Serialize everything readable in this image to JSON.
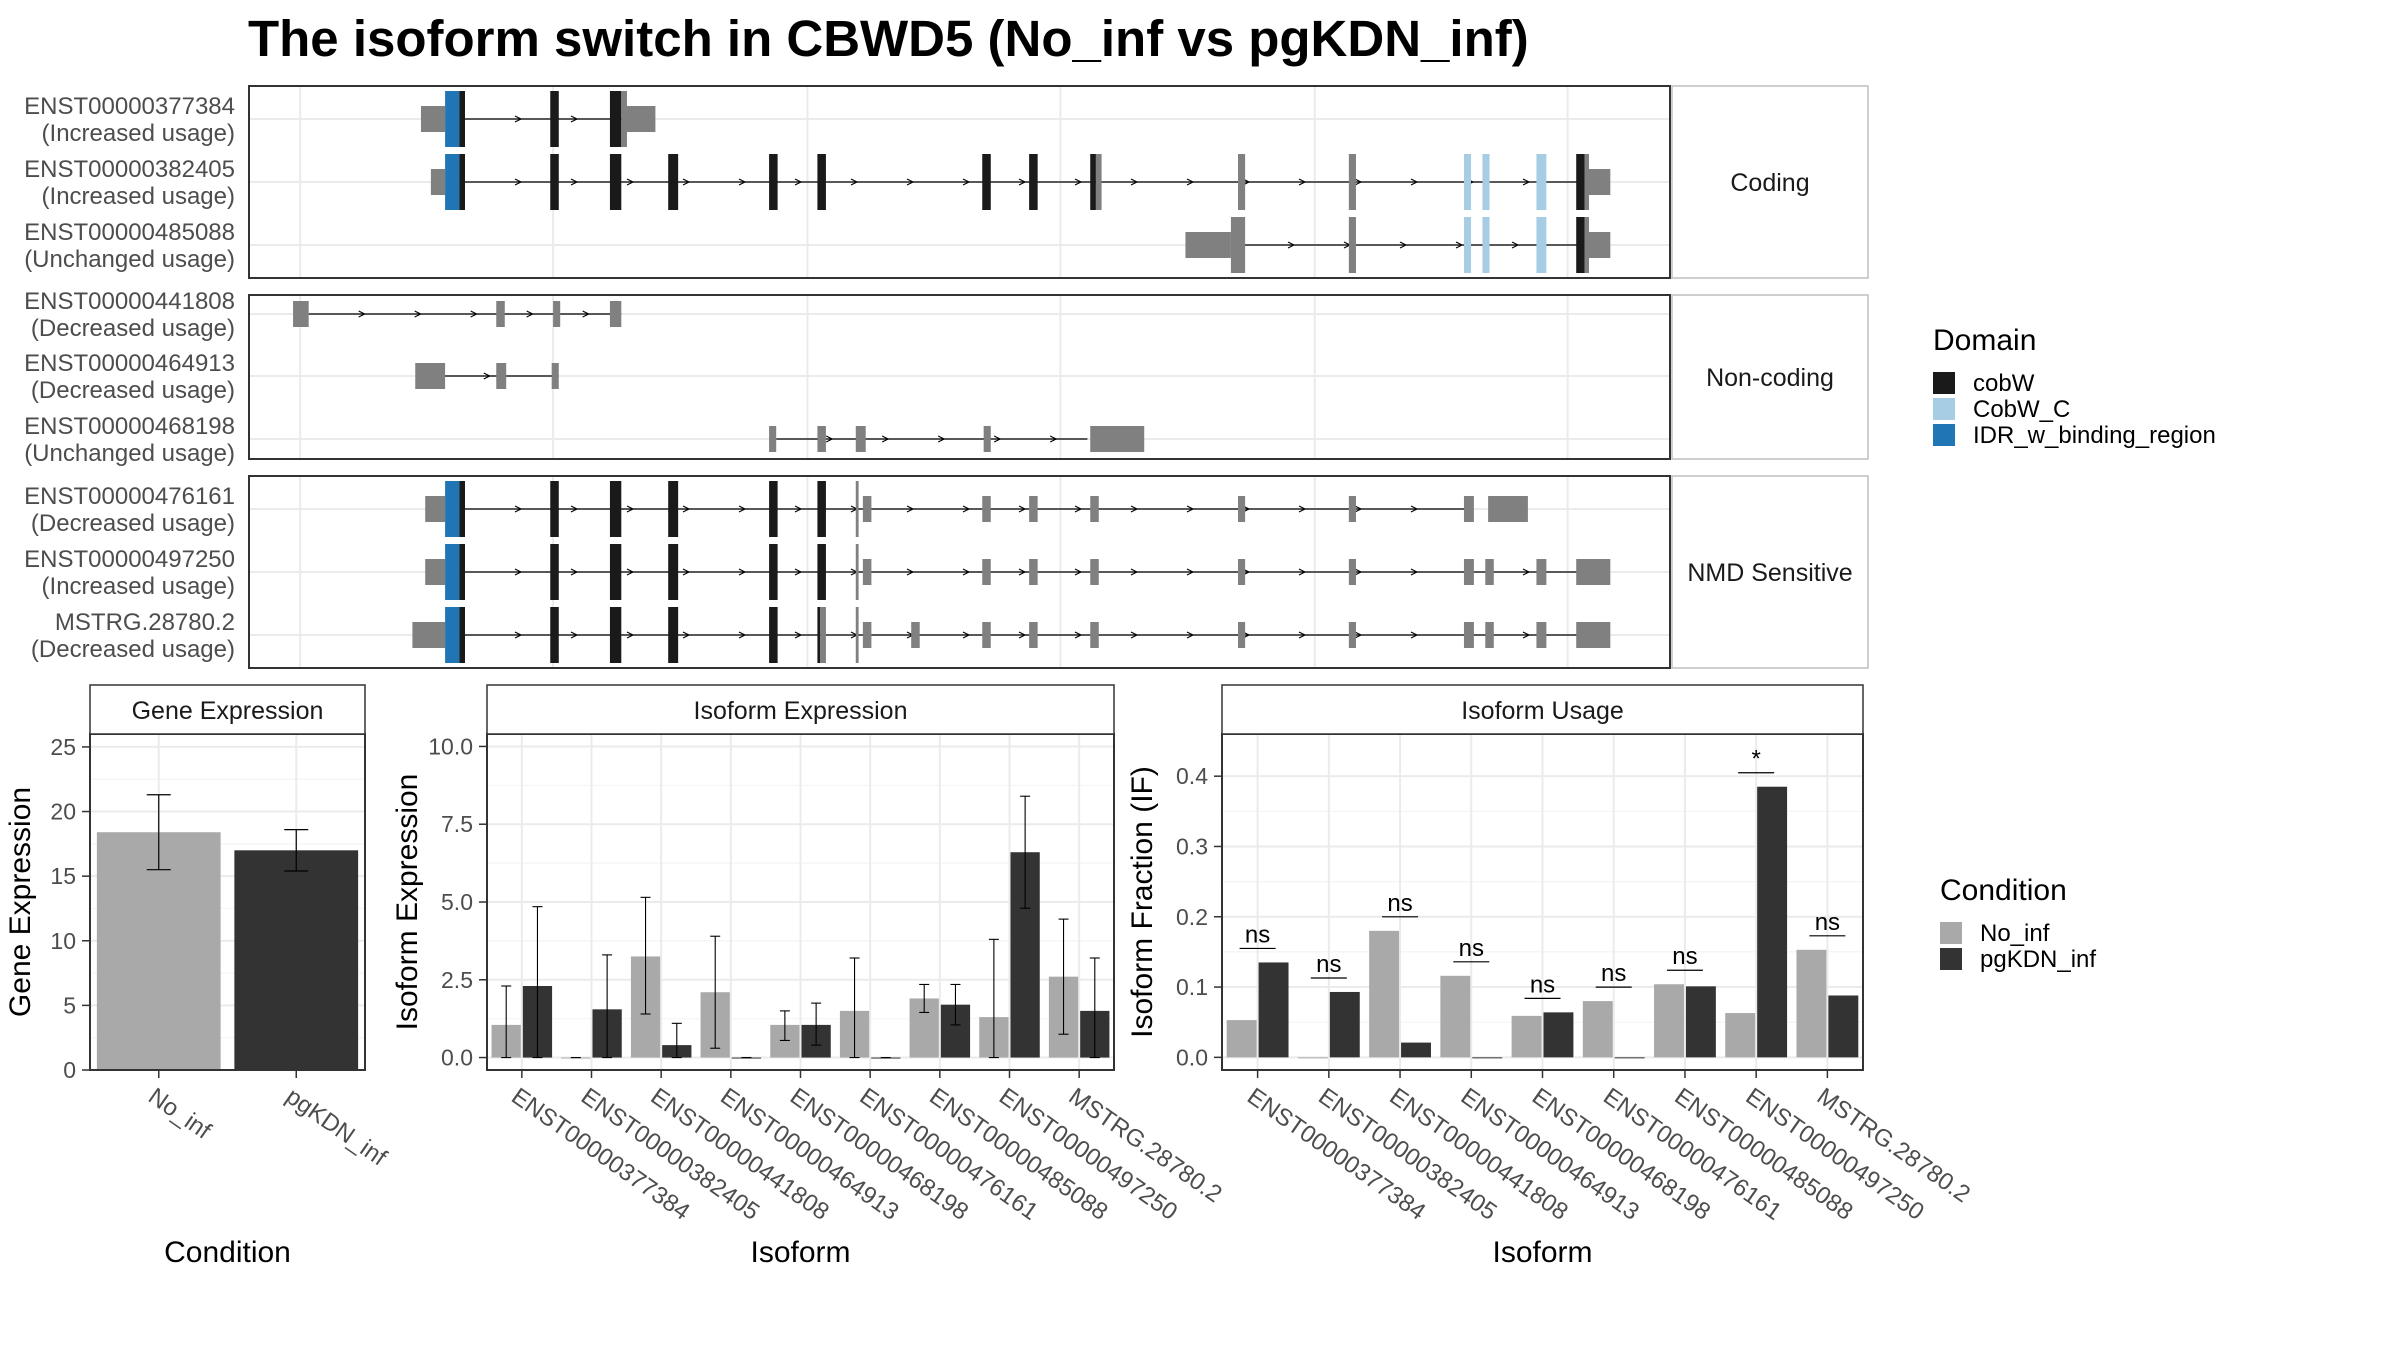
{
  "title": "The isoform switch in CBWD5 (No_inf vs pgKDN_inf)",
  "colors": {
    "cobW": "#1a1a1a",
    "CobW_C": "#a6cde3",
    "IDR_w_binding_region": "#2076b4",
    "no_domain": "#808080",
    "No_inf": "#a9a9a9",
    "pgKDN_inf": "#333333",
    "grid": "#ebebeb",
    "panel_border": "#333333",
    "strip_border": "#bfbfbf"
  },
  "structure_panels": [
    {
      "label": "Coding",
      "isoforms": [
        {
          "id": "ENST00000377384",
          "usage": "(Increased usage)"
        },
        {
          "id": "ENST00000382405",
          "usage": "(Increased usage)"
        },
        {
          "id": "ENST00000485088",
          "usage": "(Unchanged usage)"
        }
      ]
    },
    {
      "label": "Non-coding",
      "isoforms": [
        {
          "id": "ENST00000441808",
          "usage": "(Decreased usage)"
        },
        {
          "id": "ENST00000464913",
          "usage": "(Decreased usage)"
        },
        {
          "id": "ENST00000468198",
          "usage": "(Unchanged usage)"
        }
      ]
    },
    {
      "label": "NMD Sensitive",
      "isoforms": [
        {
          "id": "ENST00000476161",
          "usage": "(Decreased usage)"
        },
        {
          "id": "ENST00000497250",
          "usage": "(Increased usage)"
        },
        {
          "id": "MSTRG.28780.2",
          "usage": "(Decreased usage)"
        }
      ]
    }
  ],
  "domain_legend": {
    "title": "Domain",
    "items": [
      {
        "name": "cobW",
        "color": "#1a1a1a"
      },
      {
        "name": "CobW_C",
        "color": "#a6cde3"
      },
      {
        "name": "IDR_w_binding_region",
        "color": "#2076b4"
      }
    ]
  },
  "condition_legend": {
    "title": "Condition",
    "items": [
      {
        "name": "No_inf",
        "color": "#a9a9a9"
      },
      {
        "name": "pgKDN_inf",
        "color": "#333333"
      }
    ]
  },
  "chart_data": [
    {
      "type": "bar",
      "title": "Gene Expression",
      "xlabel": "Condition",
      "ylabel": "Gene Expression",
      "categories": [
        "No_inf",
        "pgKDN_inf"
      ],
      "values": [
        18.4,
        17.0
      ],
      "error_low": [
        15.5,
        15.4
      ],
      "error_high": [
        21.3,
        18.6
      ],
      "ylim": [
        0,
        26
      ],
      "yticks": [
        0,
        5,
        10,
        15,
        20,
        25
      ],
      "ytick_labels": [
        "0",
        "5",
        "10",
        "15",
        "20",
        "25"
      ]
    },
    {
      "type": "bar",
      "title": "Isoform Expression",
      "xlabel": "Isoform",
      "ylabel": "Isoform Expression",
      "categories": [
        "ENST00000377384",
        "ENST00000382405",
        "ENST00000441808",
        "ENST00000464913",
        "ENST00000468198",
        "ENST00000476161",
        "ENST00000485088",
        "ENST00000497250",
        "MSTRG.28780.2"
      ],
      "series": [
        {
          "name": "No_inf",
          "values": [
            1.05,
            0,
            3.25,
            2.1,
            1.05,
            1.5,
            1.9,
            1.3,
            2.6
          ],
          "error_low": [
            0.0,
            0,
            1.4,
            0.3,
            0.55,
            0.0,
            1.45,
            0.0,
            0.75
          ],
          "error_high": [
            2.3,
            0,
            5.15,
            3.9,
            1.5,
            3.2,
            2.35,
            3.8,
            4.45
          ]
        },
        {
          "name": "pgKDN_inf",
          "values": [
            2.3,
            1.55,
            0.4,
            0,
            1.05,
            0,
            1.7,
            6.6,
            1.5
          ],
          "error_low": [
            0.0,
            0.0,
            0.0,
            0,
            0.4,
            0,
            1.05,
            4.8,
            0.0
          ],
          "error_high": [
            4.85,
            3.3,
            1.1,
            0,
            1.75,
            0,
            2.35,
            8.4,
            3.2
          ]
        }
      ],
      "ylim": [
        -0.4,
        10.4
      ],
      "yticks": [
        0,
        2.5,
        5,
        7.5,
        10
      ],
      "ytick_labels": [
        "0.0",
        "2.5",
        "5.0",
        "7.5",
        "10.0"
      ]
    },
    {
      "type": "bar",
      "title": "Isoform Usage",
      "xlabel": "Isoform",
      "ylabel": "Isoform Fraction (IF)",
      "categories": [
        "ENST00000377384",
        "ENST00000382405",
        "ENST00000441808",
        "ENST00000464913",
        "ENST00000468198",
        "ENST00000476161",
        "ENST00000485088",
        "ENST00000497250",
        "MSTRG.28780.2"
      ],
      "series": [
        {
          "name": "No_inf",
          "values": [
            0.053,
            0.0,
            0.18,
            0.116,
            0.059,
            0.08,
            0.104,
            0.063,
            0.153
          ]
        },
        {
          "name": "pgKDN_inf",
          "values": [
            0.135,
            0.093,
            0.021,
            0.0,
            0.064,
            0.0,
            0.101,
            0.385,
            0.088
          ]
        }
      ],
      "significance": [
        "ns",
        "ns",
        "ns",
        "ns",
        "ns",
        "ns",
        "ns",
        "*",
        "ns"
      ],
      "ylim": [
        -0.018,
        0.46
      ],
      "yticks": [
        0,
        0.1,
        0.2,
        0.3,
        0.4
      ],
      "ytick_labels": [
        "0.0",
        "0.1",
        "0.2",
        "0.3",
        "0.4"
      ]
    }
  ]
}
